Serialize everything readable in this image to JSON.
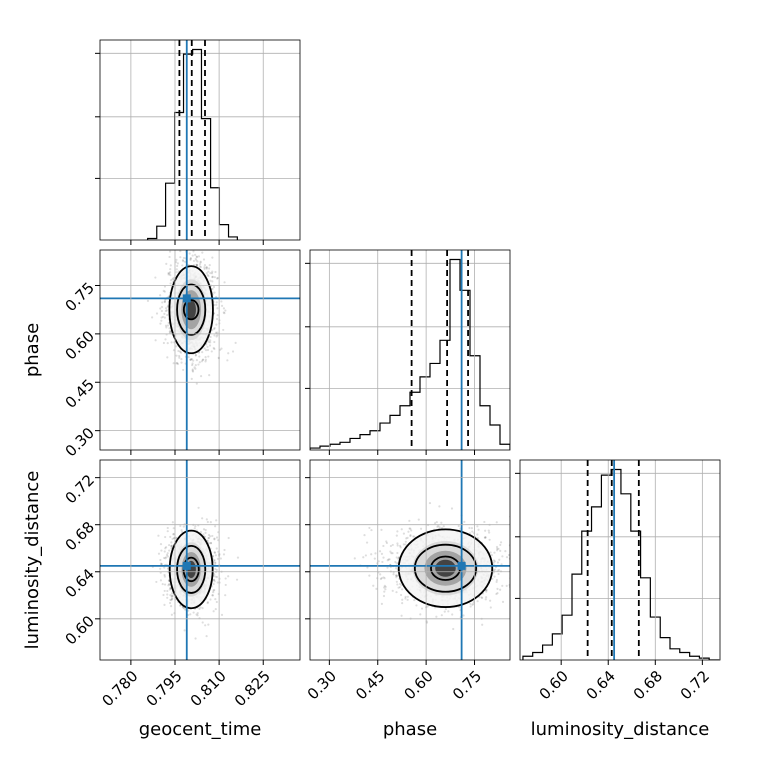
{
  "chart_data": {
    "type": "corner",
    "parameters": [
      "geocent_time",
      "phase",
      "luminosity_distance"
    ],
    "truths": {
      "geocent_time": 0.799,
      "phase": 0.71,
      "luminosity_distance": 0.645
    },
    "truth_color": "#1f77b4",
    "axes": {
      "geocent_time": {
        "range": [
          0.7695,
          0.8375
        ],
        "ticks": [
          0.78,
          0.795,
          0.81,
          0.825
        ],
        "tick_labels": [
          "0.780",
          "0.795",
          "0.810",
          "0.825"
        ]
      },
      "phase": {
        "range": [
          0.24,
          0.86
        ],
        "ticks": [
          0.3,
          0.45,
          0.6,
          0.75
        ],
        "tick_labels": [
          "0.30",
          "0.45",
          "0.60",
          "0.75"
        ]
      },
      "luminosity_distance": {
        "range": [
          0.565,
          0.735
        ],
        "ticks": [
          0.6,
          0.64,
          0.68,
          0.72
        ],
        "tick_labels": [
          "0.60",
          "0.64",
          "0.68",
          "0.72"
        ]
      }
    },
    "marginals": {
      "geocent_time": {
        "quantiles": [
          0.7965,
          0.8007,
          0.8052
        ],
        "bin_edges": [
          0.7857,
          0.7888,
          0.7918,
          0.7949,
          0.7979,
          0.801,
          0.804,
          0.8071,
          0.8101,
          0.8132,
          0.8162
        ],
        "counts": [
          1,
          9,
          37,
          83,
          121,
          124,
          79,
          34,
          10,
          2
        ]
      },
      "phase": {
        "quantiles": [
          0.555,
          0.665,
          0.73
        ],
        "bin_edges": [
          0.24,
          0.271,
          0.302,
          0.333,
          0.364,
          0.395,
          0.426,
          0.457,
          0.488,
          0.519,
          0.55,
          0.581,
          0.612,
          0.643,
          0.674,
          0.705,
          0.736,
          0.767,
          0.798,
          0.829,
          0.86
        ],
        "counts": [
          1,
          2,
          3,
          4,
          6,
          8,
          10,
          14,
          18,
          23,
          30,
          38,
          45,
          57,
          99,
          83,
          49,
          23,
          13,
          3
        ]
      },
      "luminosity_distance": {
        "quantiles": [
          0.6225,
          0.643,
          0.666
        ],
        "bin_edges": [
          0.5675,
          0.5758,
          0.5842,
          0.5925,
          0.6008,
          0.6092,
          0.6175,
          0.6258,
          0.6342,
          0.6425,
          0.6508,
          0.6592,
          0.6675,
          0.6758,
          0.6842,
          0.6925,
          0.7008,
          0.7092,
          0.7175,
          0.7258,
          0.7342
        ],
        "counts": [
          2,
          4,
          8,
          14,
          24,
          46,
          69,
          82,
          99,
          102,
          89,
          69,
          44,
          23,
          12,
          6,
          4,
          2,
          1,
          0
        ]
      }
    },
    "pairs": [
      {
        "x": "geocent_time",
        "y": "phase",
        "center": [
          0.8005,
          0.675
        ],
        "sigma": [
          0.0042,
          0.075
        ],
        "levels": [
          [
            0.0025,
            0.03
          ],
          [
            0.0048,
            0.078
          ],
          [
            0.0074,
            0.135
          ]
        ]
      },
      {
        "x": "geocent_time",
        "y": "luminosity_distance",
        "center": [
          0.8005,
          0.642
        ],
        "sigma": [
          0.0042,
          0.016
        ],
        "levels": [
          [
            0.0026,
            0.01
          ],
          [
            0.0048,
            0.02
          ],
          [
            0.0073,
            0.033
          ]
        ]
      },
      {
        "x": "phase",
        "y": "luminosity_distance",
        "center": [
          0.66,
          0.643
        ],
        "sigma": [
          0.09,
          0.016
        ],
        "levels": [
          [
            0.045,
            0.01
          ],
          [
            0.095,
            0.02
          ],
          [
            0.145,
            0.033
          ]
        ]
      }
    ]
  }
}
